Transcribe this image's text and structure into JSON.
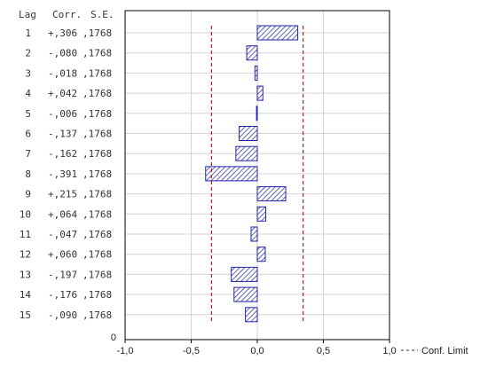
{
  "chart_data": {
    "type": "bar",
    "orientation": "horizontal",
    "header": {
      "lag": "Lag",
      "corr": "Corr.",
      "se": "S.E."
    },
    "rows": [
      {
        "lag": "1",
        "corr_label": "+,306",
        "se_label": ",1768",
        "value": 0.306
      },
      {
        "lag": "2",
        "corr_label": "-,080",
        "se_label": ",1768",
        "value": -0.08
      },
      {
        "lag": "3",
        "corr_label": "-,018",
        "se_label": ",1768",
        "value": -0.018
      },
      {
        "lag": "4",
        "corr_label": "+,042",
        "se_label": ",1768",
        "value": 0.042
      },
      {
        "lag": "5",
        "corr_label": "-,006",
        "se_label": ",1768",
        "value": -0.006
      },
      {
        "lag": "6",
        "corr_label": "-,137",
        "se_label": ",1768",
        "value": -0.137
      },
      {
        "lag": "7",
        "corr_label": "-,162",
        "se_label": ",1768",
        "value": -0.162
      },
      {
        "lag": "8",
        "corr_label": "-,391",
        "se_label": ",1768",
        "value": -0.391
      },
      {
        "lag": "9",
        "corr_label": "+,215",
        "se_label": ",1768",
        "value": 0.215
      },
      {
        "lag": "10",
        "corr_label": "+,064",
        "se_label": ",1768",
        "value": 0.064
      },
      {
        "lag": "11",
        "corr_label": "-,047",
        "se_label": ",1768",
        "value": -0.047
      },
      {
        "lag": "12",
        "corr_label": "+,060",
        "se_label": ",1768",
        "value": 0.06
      },
      {
        "lag": "13",
        "corr_label": "-,197",
        "se_label": ",1768",
        "value": -0.197
      },
      {
        "lag": "14",
        "corr_label": "-,176",
        "se_label": ",1768",
        "value": -0.176
      },
      {
        "lag": "15",
        "corr_label": "-,090",
        "se_label": ",1768",
        "value": -0.09
      }
    ],
    "zero_label": "0",
    "x_ticks": [
      {
        "value": -1.0,
        "label": "-1,0"
      },
      {
        "value": -0.5,
        "label": "-0,5"
      },
      {
        "value": 0.0,
        "label": "0,0"
      },
      {
        "value": 0.5,
        "label": "0,5"
      },
      {
        "value": 1.0,
        "label": "1,0"
      }
    ],
    "xlim": [
      -1.0,
      1.0
    ],
    "conf_limit": 0.3465,
    "legend": {
      "label": "Conf. Limit",
      "position": "bottom-right"
    },
    "grid": true,
    "colors": {
      "bar_stroke": "#2222aa",
      "bar_hatch": "#3a3aa8",
      "conf_line": "#b02020",
      "grid": "#d4d4d4",
      "axis": "#000000"
    }
  }
}
